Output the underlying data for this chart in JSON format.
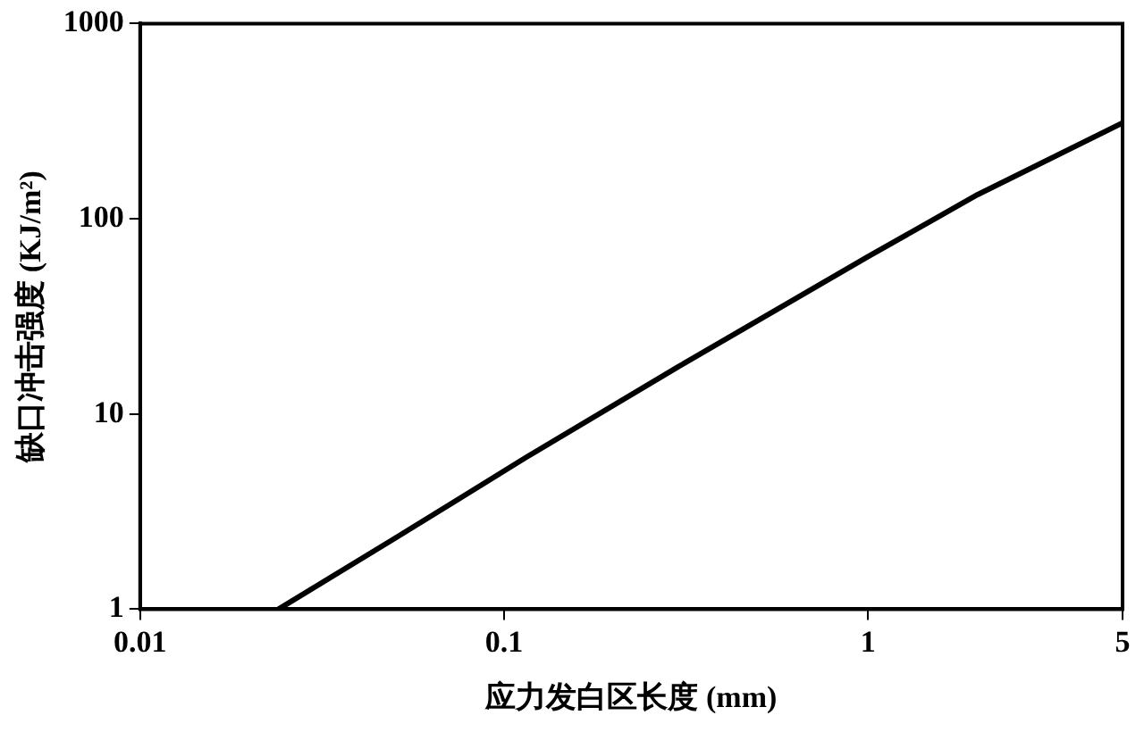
{
  "chart_data": {
    "type": "line",
    "xlabel": "应力发白区长度 (mm)",
    "ylabel": "缺口冲击强度 (KJ/m²)",
    "log": "xy",
    "x": [
      0.024,
      0.05,
      0.115,
      0.3,
      1,
      2,
      5
    ],
    "series": [
      {
        "color": "#000000",
        "values": [
          1,
          2.3,
          6,
          17.4,
          64,
          133,
          310
        ]
      }
    ],
    "xlim": [
      0.01,
      5
    ],
    "xticks": [
      0.01,
      0.1,
      1,
      5
    ],
    "ylim": [
      1,
      1000
    ],
    "yticks": [
      1,
      10,
      100,
      1000
    ],
    "grid": false,
    "legend": false,
    "marker": "none",
    "line_style": "solid"
  }
}
